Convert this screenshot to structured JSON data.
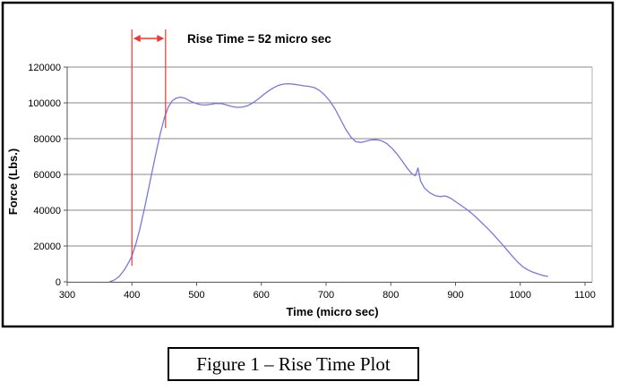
{
  "figure": {
    "caption": "Figure 1 – Rise Time Plot"
  },
  "chart_data": {
    "type": "line",
    "title": "",
    "xlabel": "Time (micro sec)",
    "ylabel": "Force (Lbs.)",
    "annotation": "Rise Time = 52 micro sec",
    "xlim": [
      300,
      1100
    ],
    "ylim": [
      0,
      120000
    ],
    "x_ticks": [
      300,
      400,
      500,
      600,
      700,
      800,
      900,
      1000,
      1100
    ],
    "y_ticks": [
      0,
      20000,
      40000,
      60000,
      80000,
      100000,
      120000
    ],
    "grid": "horizontal",
    "legend": "none",
    "rise_markers": {
      "t_start": 400,
      "t_end": 452,
      "duration_label": "52 micro sec"
    },
    "colors": {
      "line": "#7878dc",
      "marker": "#f23333",
      "grid": "#888888",
      "axis": "#555555",
      "frame": "#000000",
      "plot_border": "#b3b3b3",
      "text": "#000000"
    },
    "series": [
      {
        "name": "Force",
        "points": [
          [
            365,
            0
          ],
          [
            372,
            800
          ],
          [
            380,
            2800
          ],
          [
            388,
            6500
          ],
          [
            395,
            10800
          ],
          [
            400,
            14500
          ],
          [
            406,
            21000
          ],
          [
            412,
            29000
          ],
          [
            420,
            42000
          ],
          [
            428,
            56000
          ],
          [
            436,
            70000
          ],
          [
            444,
            83000
          ],
          [
            450,
            91500
          ],
          [
            456,
            97500
          ],
          [
            462,
            101000
          ],
          [
            468,
            102600
          ],
          [
            475,
            103200
          ],
          [
            482,
            102600
          ],
          [
            490,
            101000
          ],
          [
            498,
            99800
          ],
          [
            506,
            99000
          ],
          [
            514,
            98800
          ],
          [
            522,
            99200
          ],
          [
            530,
            99700
          ],
          [
            538,
            99600
          ],
          [
            546,
            98900
          ],
          [
            554,
            98000
          ],
          [
            562,
            97500
          ],
          [
            570,
            97600
          ],
          [
            578,
            98300
          ],
          [
            586,
            99800
          ],
          [
            594,
            101800
          ],
          [
            602,
            104200
          ],
          [
            610,
            106400
          ],
          [
            618,
            108300
          ],
          [
            626,
            109700
          ],
          [
            634,
            110500
          ],
          [
            642,
            110700
          ],
          [
            650,
            110400
          ],
          [
            658,
            110000
          ],
          [
            666,
            109500
          ],
          [
            674,
            109200
          ],
          [
            682,
            108500
          ],
          [
            690,
            106900
          ],
          [
            698,
            104300
          ],
          [
            706,
            101000
          ],
          [
            714,
            96500
          ],
          [
            722,
            91000
          ],
          [
            730,
            85500
          ],
          [
            738,
            81000
          ],
          [
            746,
            78300
          ],
          [
            754,
            77900
          ],
          [
            762,
            78600
          ],
          [
            770,
            79300
          ],
          [
            778,
            79400
          ],
          [
            786,
            78800
          ],
          [
            794,
            77200
          ],
          [
            802,
            74600
          ],
          [
            810,
            71200
          ],
          [
            818,
            67300
          ],
          [
            826,
            63200
          ],
          [
            833,
            60200
          ],
          [
            838,
            59300
          ],
          [
            842,
            63600
          ],
          [
            846,
            56200
          ],
          [
            852,
            52400
          ],
          [
            860,
            49800
          ],
          [
            868,
            48200
          ],
          [
            876,
            47600
          ],
          [
            884,
            48000
          ],
          [
            892,
            46800
          ],
          [
            900,
            44800
          ],
          [
            908,
            42800
          ],
          [
            916,
            40800
          ],
          [
            924,
            38600
          ],
          [
            932,
            36000
          ],
          [
            940,
            33200
          ],
          [
            948,
            30400
          ],
          [
            956,
            27400
          ],
          [
            964,
            24200
          ],
          [
            972,
            21000
          ],
          [
            980,
            17600
          ],
          [
            988,
            14200
          ],
          [
            996,
            11000
          ],
          [
            1004,
            8400
          ],
          [
            1012,
            6600
          ],
          [
            1020,
            5300
          ],
          [
            1028,
            4300
          ],
          [
            1036,
            3400
          ],
          [
            1043,
            3000
          ]
        ]
      }
    ]
  }
}
